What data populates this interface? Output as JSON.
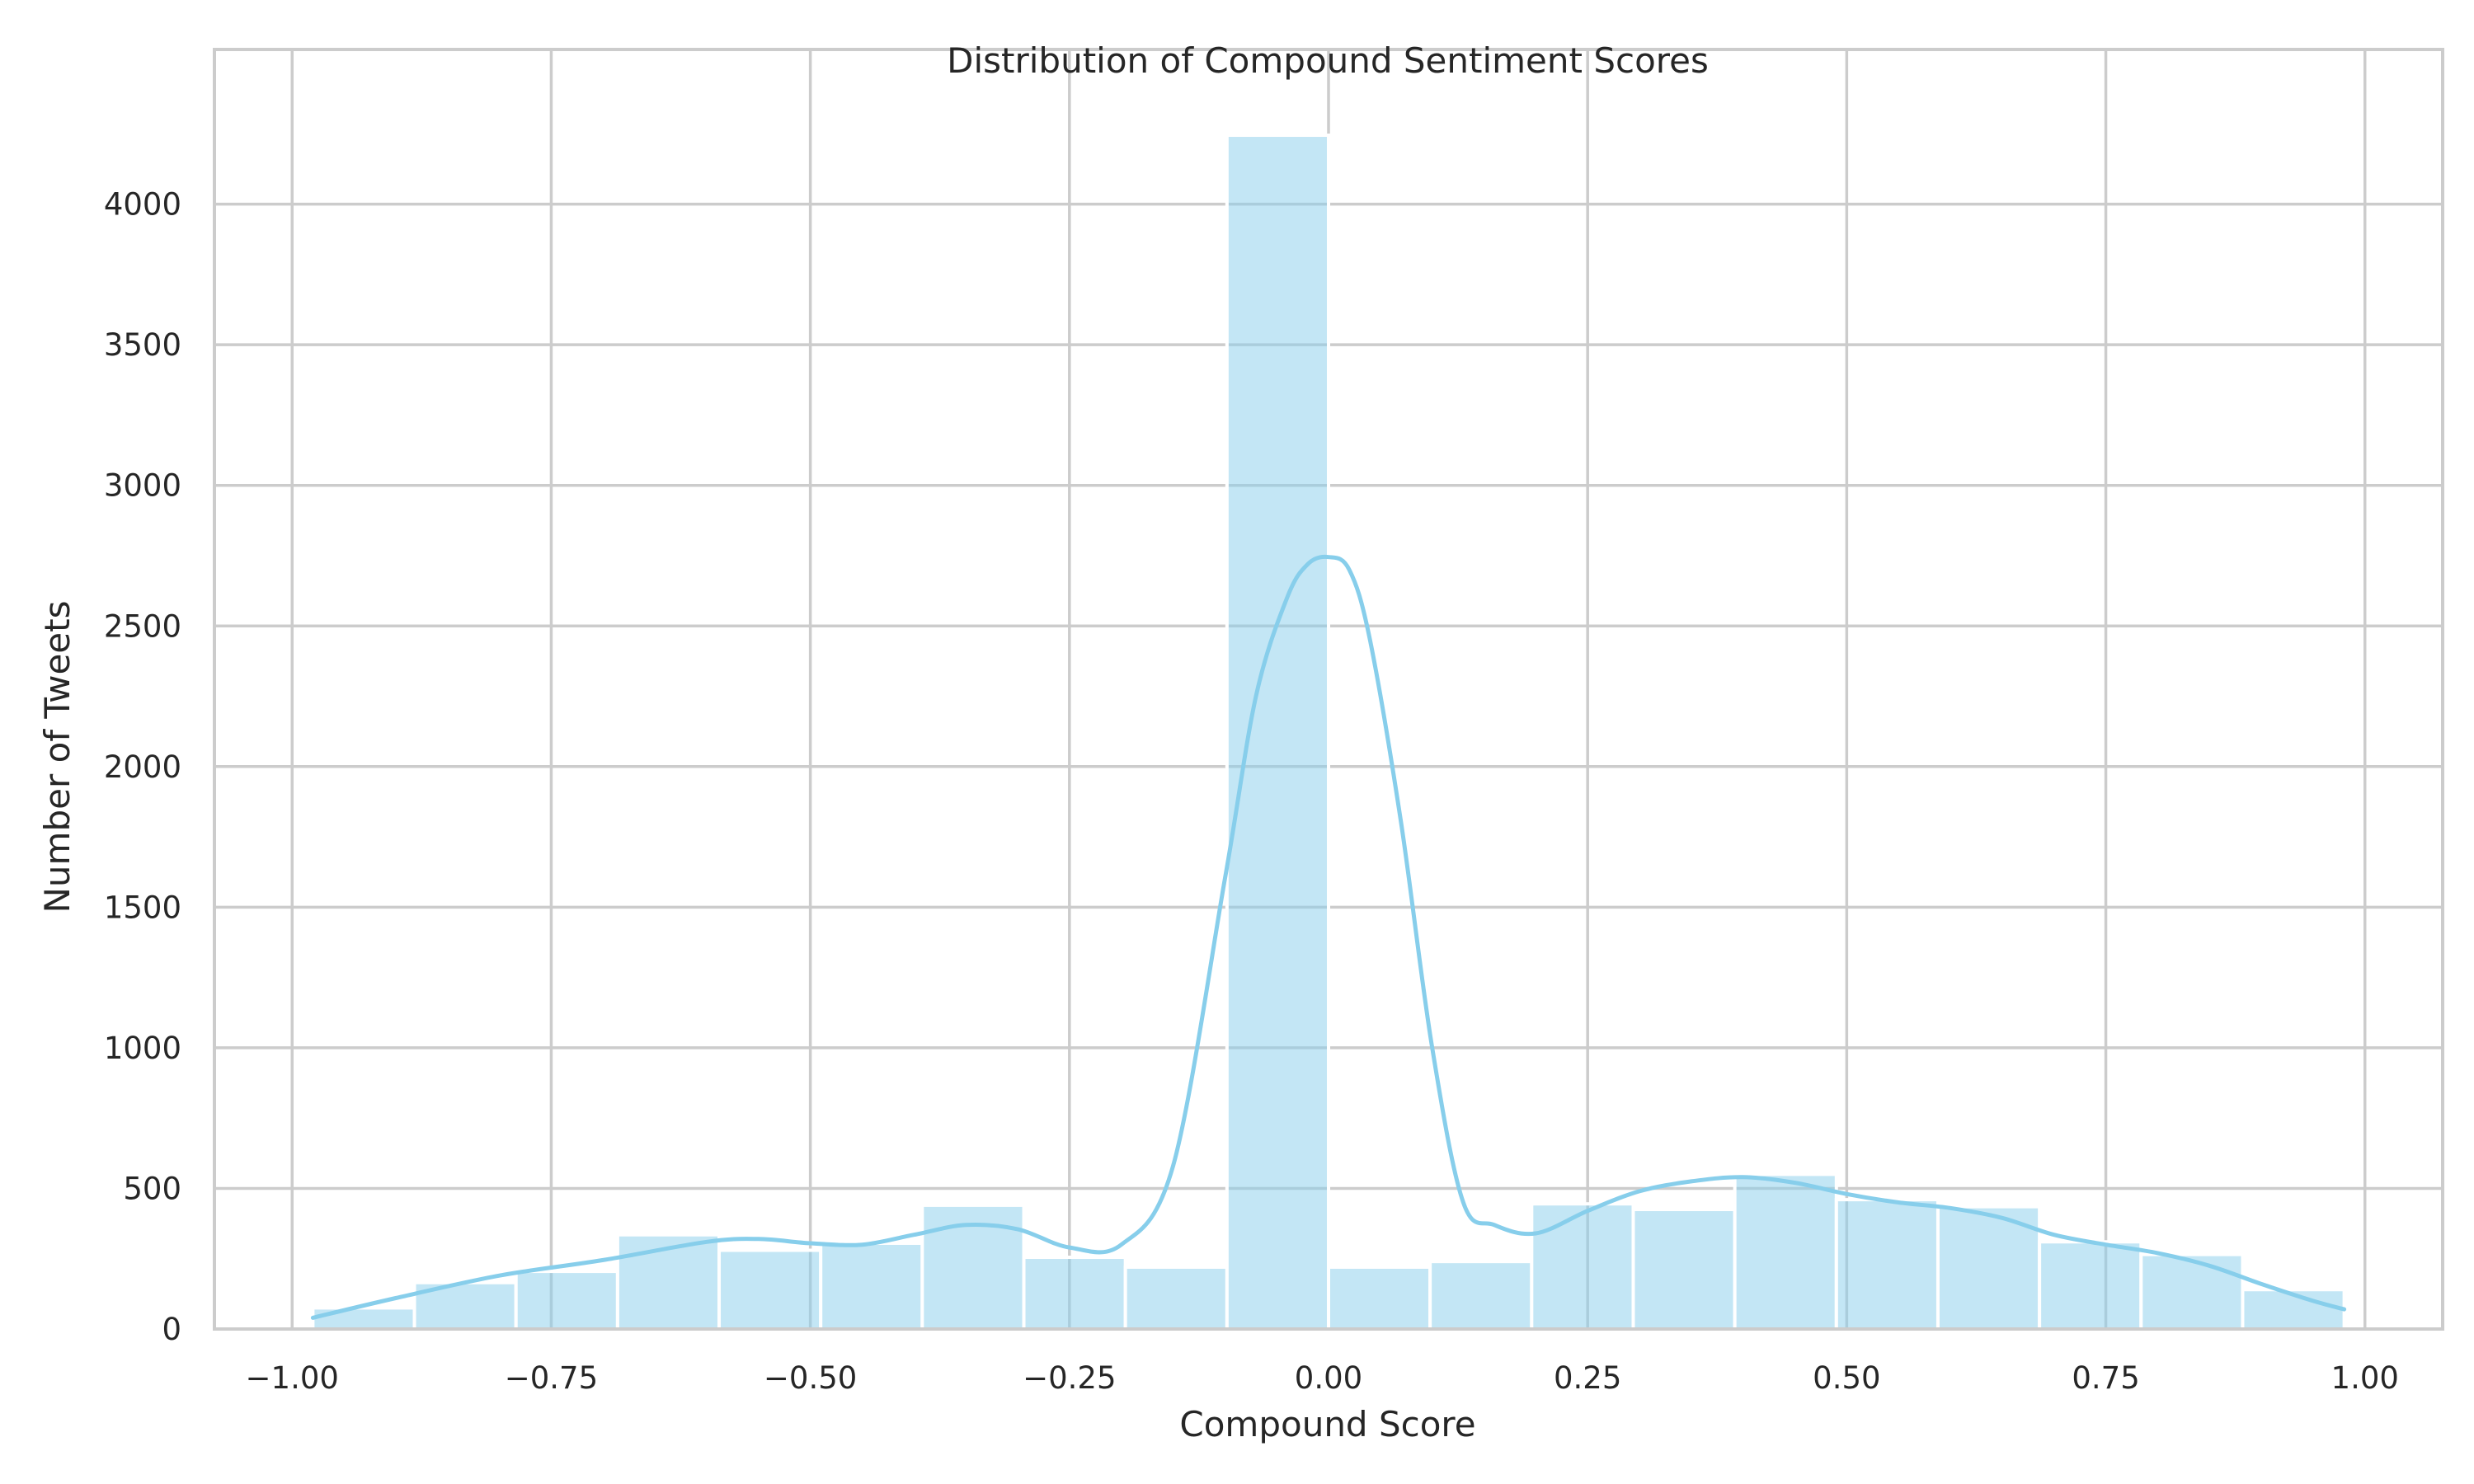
{
  "chart_data": {
    "type": "histogram",
    "title": "Distribution of Compound Sentiment Scores",
    "xlabel": "Compound Score",
    "ylabel": "Number of Tweets",
    "xlim": [
      -1.075,
      1.075
    ],
    "ylim": [
      0,
      4550
    ],
    "x_ticks": [
      -1.0,
      -0.75,
      -0.5,
      -0.25,
      0.0,
      0.25,
      0.5,
      0.75,
      1.0
    ],
    "x_tick_labels": [
      "−1.00",
      "−0.75",
      "−0.50",
      "−0.25",
      "0.00",
      "0.25",
      "0.50",
      "0.75",
      "1.00"
    ],
    "y_ticks": [
      0,
      500,
      1000,
      1500,
      2000,
      2500,
      3000,
      3500,
      4000
    ],
    "y_tick_labels": [
      "0",
      "500",
      "1000",
      "1500",
      "2000",
      "2500",
      "3000",
      "3500",
      "4000"
    ],
    "grid": true,
    "bar_color": "#87CEEB",
    "bar_opacity": 0.5,
    "kde_color": "#87CEEB",
    "bins": [
      {
        "x0": -0.98,
        "x1": -0.882,
        "count": 75
      },
      {
        "x0": -0.882,
        "x1": -0.784,
        "count": 165
      },
      {
        "x0": -0.784,
        "x1": -0.686,
        "count": 205
      },
      {
        "x0": -0.686,
        "x1": -0.588,
        "count": 335
      },
      {
        "x0": -0.588,
        "x1": -0.49,
        "count": 280
      },
      {
        "x0": -0.49,
        "x1": -0.392,
        "count": 305
      },
      {
        "x0": -0.392,
        "x1": -0.294,
        "count": 440
      },
      {
        "x0": -0.294,
        "x1": -0.196,
        "count": 255
      },
      {
        "x0": -0.196,
        "x1": -0.098,
        "count": 220
      },
      {
        "x0": -0.098,
        "x1": 0.0,
        "count": 4245
      },
      {
        "x0": 0.0,
        "x1": 0.098,
        "count": 220
      },
      {
        "x0": 0.098,
        "x1": 0.196,
        "count": 240
      },
      {
        "x0": 0.196,
        "x1": 0.294,
        "count": 445
      },
      {
        "x0": 0.294,
        "x1": 0.392,
        "count": 425
      },
      {
        "x0": 0.392,
        "x1": 0.49,
        "count": 550
      },
      {
        "x0": 0.49,
        "x1": 0.588,
        "count": 460
      },
      {
        "x0": 0.588,
        "x1": 0.686,
        "count": 435
      },
      {
        "x0": 0.686,
        "x1": 0.784,
        "count": 310
      },
      {
        "x0": 0.784,
        "x1": 0.882,
        "count": 265
      },
      {
        "x0": 0.882,
        "x1": 0.98,
        "count": 140
      }
    ],
    "kde": {
      "x": [
        -0.98,
        -0.9,
        -0.8,
        -0.7,
        -0.6,
        -0.55,
        -0.5,
        -0.45,
        -0.4,
        -0.35,
        -0.3,
        -0.25,
        -0.2,
        -0.15,
        -0.1,
        -0.07,
        -0.04,
        -0.02,
        0.0,
        0.02,
        0.04,
        0.07,
        0.1,
        0.13,
        0.16,
        0.2,
        0.25,
        0.3,
        0.35,
        0.4,
        0.45,
        0.5,
        0.55,
        0.6,
        0.65,
        0.7,
        0.75,
        0.8,
        0.85,
        0.9,
        0.95,
        0.98
      ],
      "y": [
        40,
        110,
        190,
        245,
        310,
        320,
        305,
        300,
        335,
        370,
        355,
        290,
        300,
        580,
        1600,
        2250,
        2600,
        2720,
        2745,
        2700,
        2450,
        1800,
        1000,
        450,
        370,
        340,
        420,
        490,
        525,
        540,
        520,
        480,
        450,
        430,
        395,
        335,
        300,
        270,
        225,
        160,
        100,
        70
      ]
    }
  }
}
